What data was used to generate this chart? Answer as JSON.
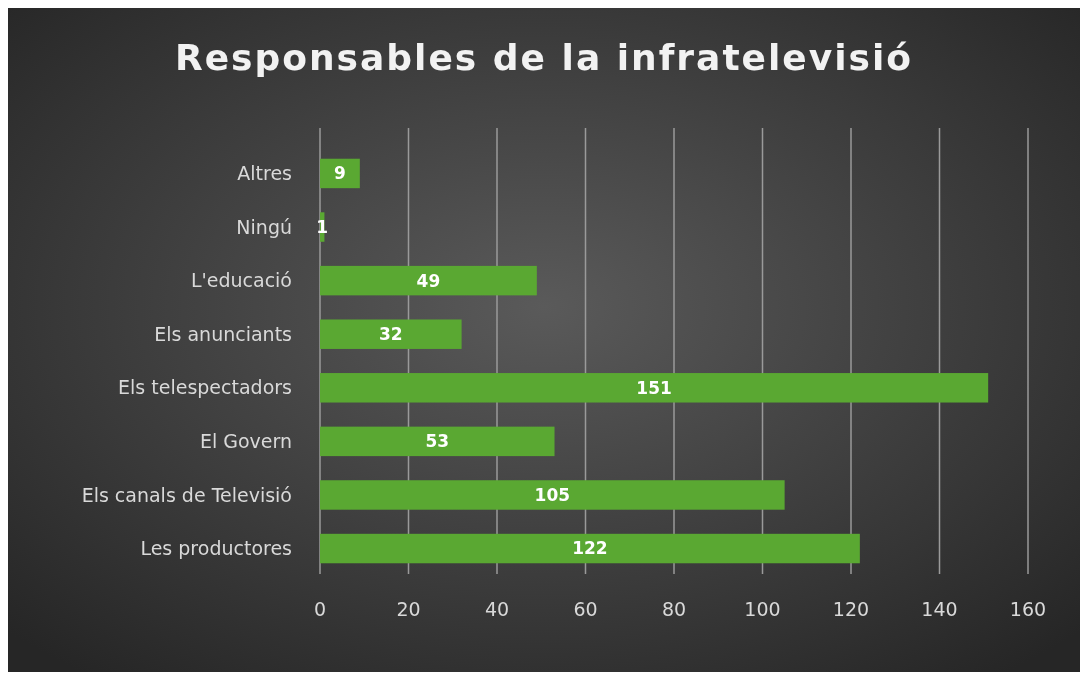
{
  "chart_data": {
    "type": "bar",
    "orientation": "horizontal",
    "title": "Responsables de la infratelevisió",
    "categories": [
      "Altres",
      "Ningú",
      "L'educació",
      "Els anunciants",
      "Els telespectadors",
      "El Govern",
      "Els canals de Televisió",
      "Les productores"
    ],
    "values": [
      9,
      1,
      49,
      32,
      151,
      53,
      105,
      122
    ],
    "color": "#5aa832",
    "xlim": [
      0,
      160
    ],
    "xticks": [
      0,
      20,
      40,
      60,
      80,
      100,
      120,
      140,
      160
    ],
    "grid": "x",
    "data_labels": true
  }
}
